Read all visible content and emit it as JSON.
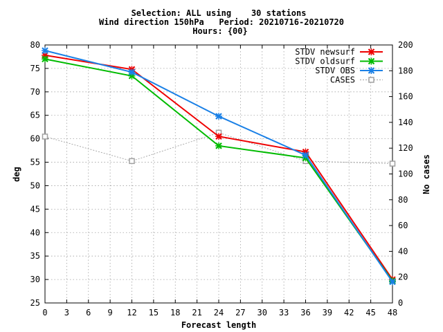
{
  "chart_data": {
    "type": "line",
    "title_lines": [
      "Selection: ALL using    30 stations",
      "Wind direction 150hPa   Period: 20210716-20210720",
      "Hours: {00}"
    ],
    "xlabel": "Forecast length",
    "ylabel": "deg",
    "y2label": "No cases",
    "xlim": [
      0,
      48
    ],
    "ylim": [
      25,
      80
    ],
    "y2lim": [
      0,
      200
    ],
    "xticks": [
      0,
      3,
      6,
      9,
      12,
      15,
      18,
      21,
      24,
      27,
      30,
      33,
      36,
      39,
      42,
      45,
      48
    ],
    "yticks": [
      25,
      30,
      35,
      40,
      45,
      50,
      55,
      60,
      65,
      70,
      75,
      80
    ],
    "y2ticks": [
      0,
      20,
      40,
      60,
      80,
      100,
      120,
      140,
      160,
      180,
      200
    ],
    "grid": true,
    "legend_position": "top-right",
    "series": [
      {
        "name": "STDV newsurf",
        "axis": "y",
        "color": "#ee0000",
        "marker": "x",
        "x": [
          0,
          12,
          24,
          36,
          48
        ],
        "values": [
          77.8,
          74.8,
          60.5,
          57.2,
          30.0
        ]
      },
      {
        "name": "STDV oldsurf",
        "axis": "y",
        "color": "#00bb00",
        "marker": "x",
        "x": [
          0,
          12,
          24,
          36,
          48
        ],
        "values": [
          77.0,
          73.4,
          58.5,
          55.9,
          29.7
        ]
      },
      {
        "name": "STDV OBS",
        "axis": "y",
        "color": "#1a80e6",
        "marker": "x",
        "x": [
          0,
          12,
          24,
          36,
          48
        ],
        "values": [
          78.8,
          74.2,
          64.8,
          56.5,
          29.5
        ]
      },
      {
        "name": "CASES",
        "axis": "y2",
        "color": "#a0a0a0",
        "marker": "square",
        "dashed": true,
        "x": [
          0,
          12,
          24,
          36,
          48
        ],
        "values": [
          129,
          110,
          132,
          110,
          108
        ]
      }
    ]
  }
}
